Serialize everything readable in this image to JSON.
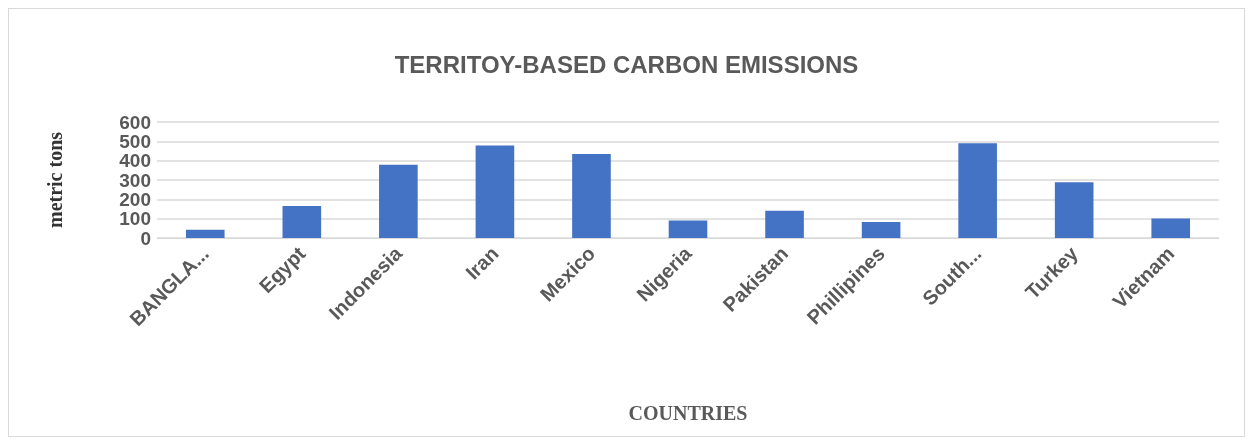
{
  "chart_data": {
    "type": "bar",
    "title": "TERRITOY-BASED CARBON EMISSIONS",
    "xlabel": "COUNTRIES",
    "ylabel": "metric tons",
    "categories": [
      "BANGLA...",
      "Egypt",
      "Indonesia",
      "Iran",
      "Mexico",
      "Nigeria",
      "Pakistan",
      "Phillipines",
      "South...",
      "Turkey",
      "Vietnam"
    ],
    "values": [
      43,
      166,
      379,
      478,
      435,
      91,
      141,
      83,
      490,
      288,
      101
    ],
    "color": "#4472c4",
    "ylim": [
      0,
      600
    ],
    "yticks": [
      0,
      100,
      200,
      300,
      400,
      500,
      600
    ],
    "grid": "y"
  }
}
